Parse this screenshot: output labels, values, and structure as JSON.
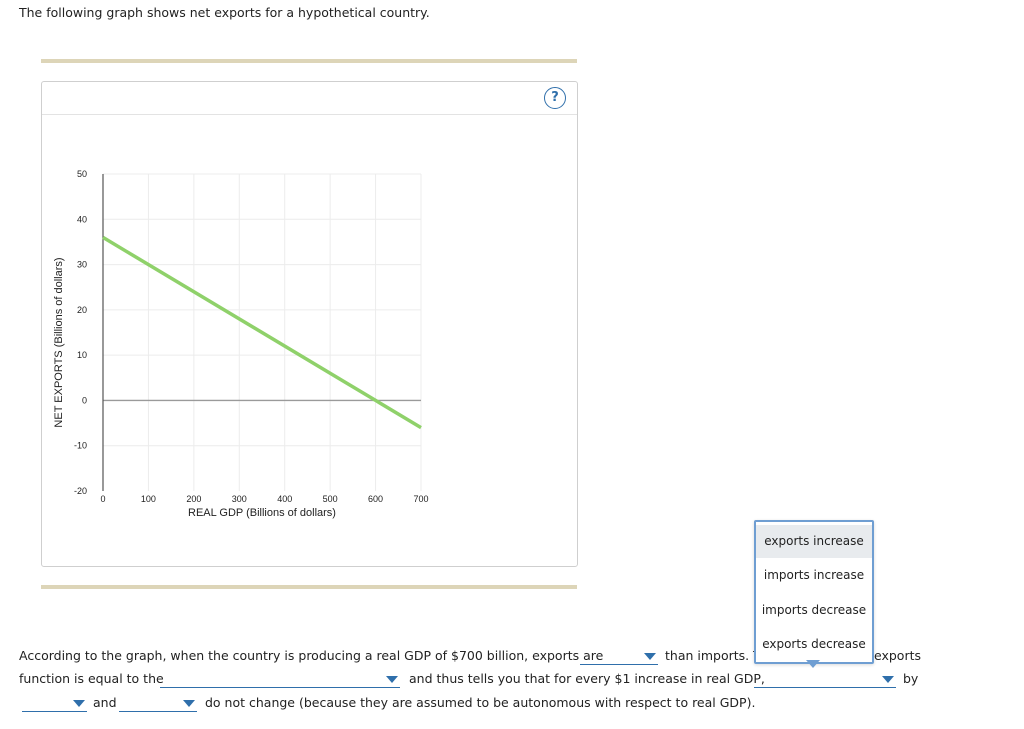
{
  "intro": "The following graph shows net exports for a hypothetical country.",
  "help_symbol": "?",
  "chart_data": {
    "type": "line",
    "xlabel": "REAL GDP (Billions of dollars)",
    "ylabel": "NET EXPORTS (Billions of dollars)",
    "xlim": [
      0,
      700
    ],
    "ylim": [
      -20,
      50
    ],
    "xticks": [
      "0",
      "100",
      "200",
      "300",
      "400",
      "500",
      "600",
      "700"
    ],
    "yticks": [
      "50",
      "40",
      "30",
      "20",
      "10",
      "0",
      "-10",
      "-20"
    ],
    "series": [
      {
        "x": [
          0,
          600,
          700
        ],
        "y": [
          36,
          0,
          -6
        ],
        "color": "#8fd16a"
      }
    ],
    "grid": true,
    "zero_line": true
  },
  "question": {
    "line1_start": "According to the graph, when the country is producing a real GDP of $700 billion, exports are",
    "line1_mid": "than imports. T",
    "line1_end": "exports",
    "line2_start": "function is equal to the",
    "line2_mid": "and thus tells you that for every $1 increase in real GDP,",
    "line2_end": "by",
    "line3_mid": "and",
    "line3_end": "do not change (because they are assumed to be autonomous with respect to real GDP)."
  },
  "menu": {
    "items": [
      "exports increase",
      "imports increase",
      "imports decrease",
      "exports decrease"
    ],
    "selected_index": 0
  }
}
